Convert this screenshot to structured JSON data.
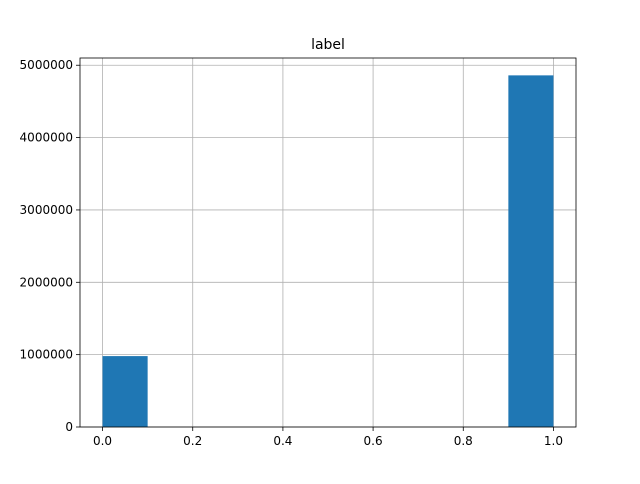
{
  "chart_data": {
    "type": "bar",
    "title": "label",
    "xlabel": "",
    "ylabel": "",
    "grid": true,
    "legend": "none",
    "bar_color": "#1f77b4",
    "xlim": [
      -0.05,
      1.05
    ],
    "ylim": [
      0,
      5100000
    ],
    "xticks": [
      0.0,
      0.2,
      0.4,
      0.6,
      0.8,
      1.0
    ],
    "xtick_labels": [
      "0.0",
      "0.2",
      "0.4",
      "0.6",
      "0.8",
      "1.0"
    ],
    "yticks": [
      0,
      1000000,
      2000000,
      3000000,
      4000000,
      5000000
    ],
    "ytick_labels": [
      "0",
      "1000000",
      "2000000",
      "3000000",
      "4000000",
      "5000000"
    ],
    "bins": [
      {
        "start": 0.0,
        "end": 0.1,
        "value": 980000
      },
      {
        "start": 0.9,
        "end": 1.0,
        "value": 4860000
      }
    ]
  }
}
